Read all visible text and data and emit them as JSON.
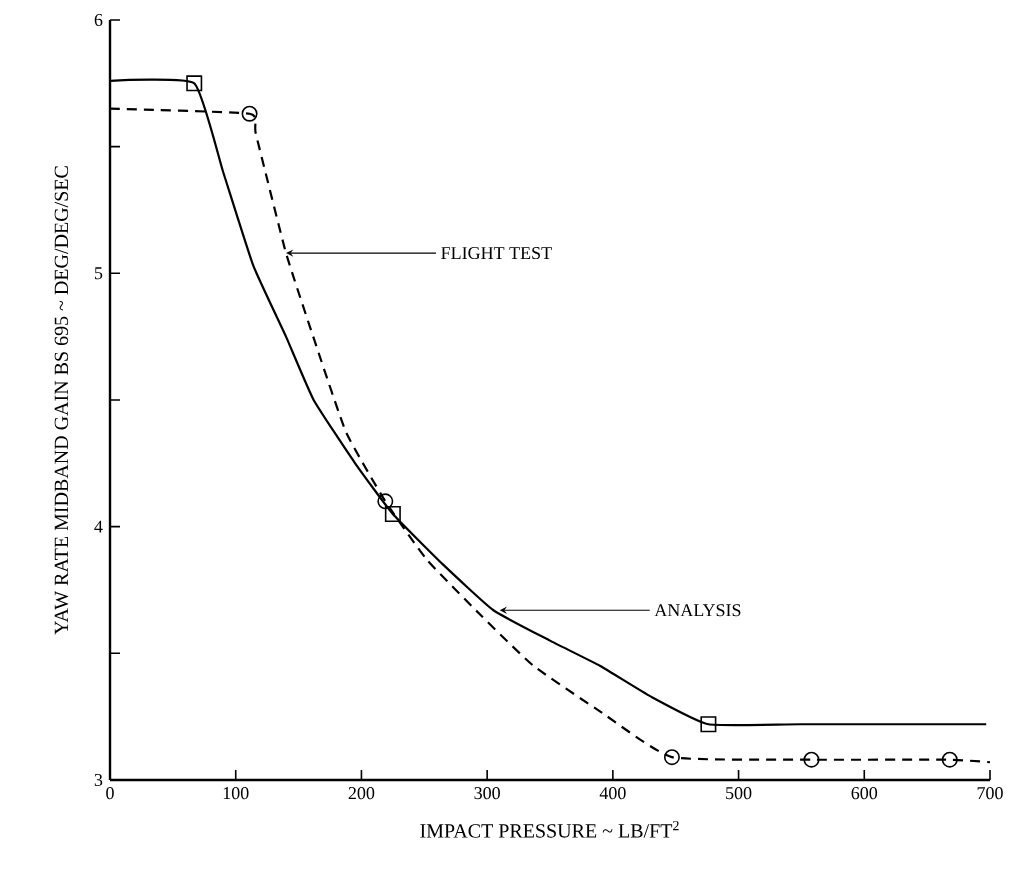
{
  "chart_data": {
    "type": "line",
    "xlabel": "IMPACT PRESSURE ~ LB/FT$^{2}$",
    "ylabel": "YAW RATE MIDBAND GAIN BS 695 ~ DEG/DEG/SEC",
    "xlim": [
      0,
      700
    ],
    "ylim": [
      3,
      6
    ],
    "xticks": [
      0,
      100,
      200,
      300,
      400,
      500,
      600,
      700
    ],
    "yticks": [
      3,
      {
        "value": 3.5,
        "label": null
      },
      4,
      {
        "value": 4.5,
        "label": null
      },
      5,
      {
        "value": 5.5,
        "label": null
      },
      6
    ],
    "grid": false,
    "series": [
      {
        "color": "#000000",
        "line_style": "solid",
        "marker": "none",
        "x": [
          0,
          67,
          90,
          114,
          140,
          162,
          195,
          225,
          265,
          305,
          350,
          390,
          430,
          476,
          550,
          697
        ],
        "values": [
          5.76,
          5.75,
          5.4,
          5.03,
          4.75,
          4.5,
          4.25,
          4.05,
          3.85,
          3.67,
          3.55,
          3.45,
          3.33,
          3.22,
          3.22,
          3.22
        ]
      },
      {
        "type": "scatter",
        "color": "#000000",
        "marker": "square",
        "x": [
          67,
          225,
          476
        ],
        "values": [
          5.75,
          4.05,
          3.22
        ]
      },
      {
        "color": "#000000",
        "line_style": "dashed",
        "marker": "none",
        "x": [
          0,
          111,
          116,
          140,
          165,
          188,
          219,
          252,
          295,
          337,
          390,
          447,
          558,
          668,
          700
        ],
        "values": [
          5.65,
          5.63,
          5.55,
          5.08,
          4.7,
          4.37,
          4.1,
          3.87,
          3.65,
          3.45,
          3.27,
          3.09,
          3.08,
          3.08,
          3.07
        ]
      },
      {
        "type": "scatter",
        "color": "#000000",
        "marker": "circle",
        "x": [
          111,
          219,
          447,
          558,
          668
        ],
        "values": [
          5.63,
          4.1,
          3.09,
          3.08,
          3.08
        ]
      }
    ],
    "annotations": [
      {
        "text": "FLIGHT TEST",
        "x": 140,
        "y": 5.08
      },
      {
        "text": "ANALYSIS",
        "x": 310,
        "y": 3.67
      }
    ]
  }
}
